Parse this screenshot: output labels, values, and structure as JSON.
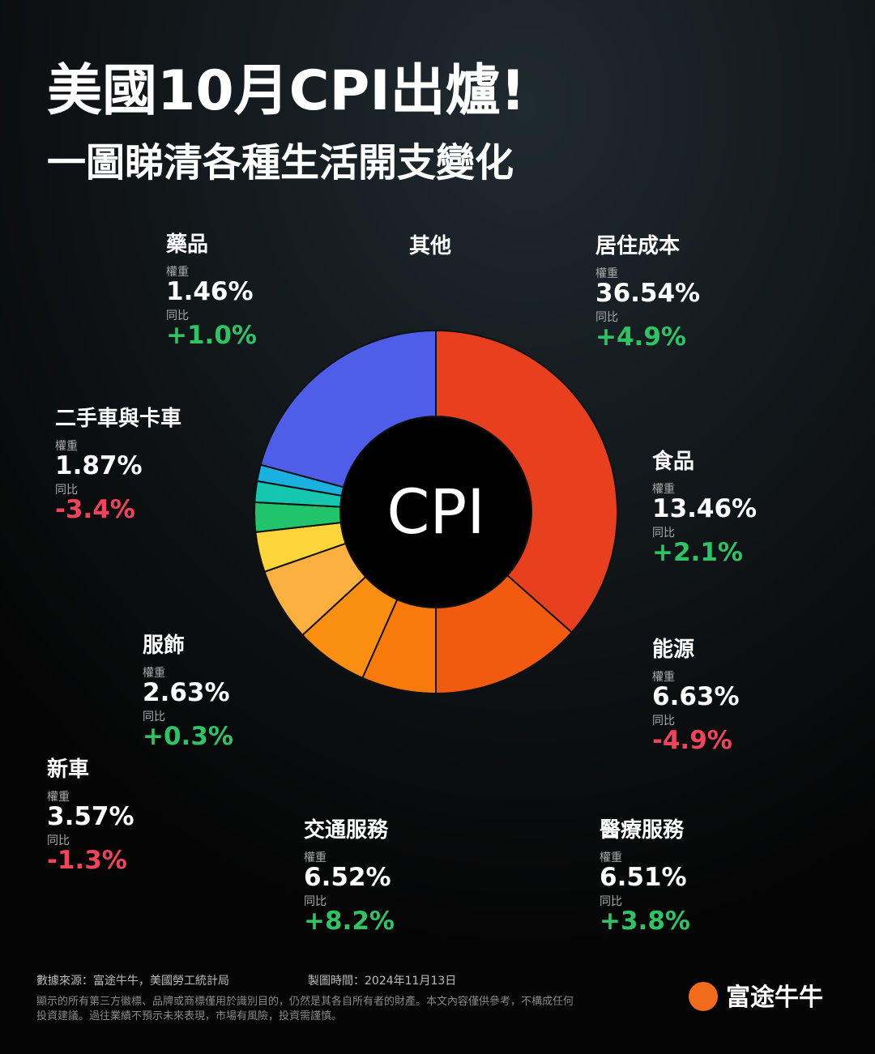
{
  "title": "美國10月CPI出爐!",
  "subtitle": "一圖睇清各種生活開支變化",
  "chart_data": {
    "type": "donut",
    "center_label": "CPI",
    "weight_caption": "權重",
    "yoy_caption": "同比",
    "categories": [
      "居住成本",
      "食品",
      "能源",
      "醫療服務",
      "交通服務",
      "新車",
      "服飾",
      "二手車與卡車",
      "藥品",
      "其他"
    ],
    "values": [
      36.54,
      13.46,
      6.63,
      6.51,
      6.52,
      3.57,
      2.63,
      1.87,
      1.46,
      20.81
    ],
    "value_labels": [
      "36.54%",
      "13.46%",
      "6.63%",
      "6.51%",
      "6.52%",
      "3.57%",
      "2.63%",
      "1.87%",
      "1.46%",
      null
    ],
    "yoy": [
      4.9,
      2.1,
      -4.9,
      3.8,
      8.2,
      -1.3,
      0.3,
      -3.4,
      1.0,
      null
    ],
    "yoy_labels": [
      "+4.9%",
      "+2.1%",
      "-4.9%",
      "+3.8%",
      "+8.2%",
      "-1.3%",
      "+0.3%",
      "-3.4%",
      "+1.0%",
      null
    ],
    "colors": [
      "#e8401e",
      "#f25a0f",
      "#f87a0a",
      "#fb8f12",
      "#fbb040",
      "#fcd53a",
      "#22c46b",
      "#16c7b0",
      "#1ab0e0",
      "#4f5ee8"
    ]
  },
  "footer": {
    "source": "數據來源：富途牛牛，美國勞工統計局",
    "date": "製圖時間：2024年11月13日",
    "disclaimer": [
      "顯示的所有第三方徽標、品牌或商標僅用於識別目的，仍然是其各自所有者的財產。本文內容僅供參考，不構成任何",
      "投資建議。過往業績不預示未來表現，市場有風險，投資需謹慎。"
    ],
    "logo": "富途牛牛"
  }
}
